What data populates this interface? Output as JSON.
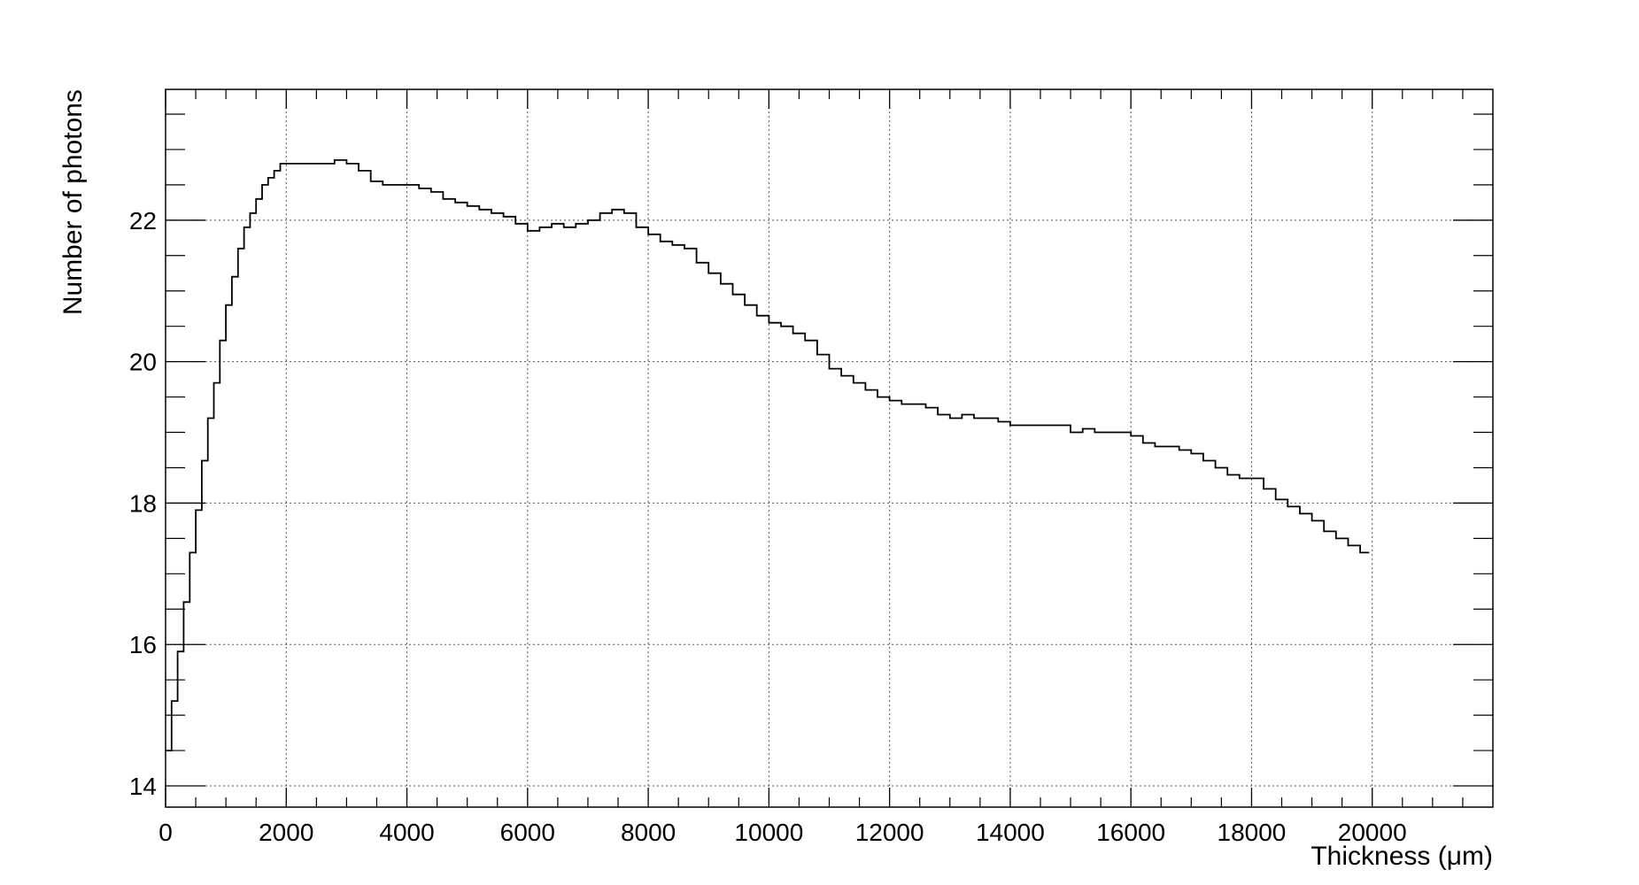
{
  "chart_data": {
    "type": "line",
    "title": "",
    "xlabel": "Thickness (μm)",
    "ylabel": "Number of photons",
    "xlim": [
      0,
      22000
    ],
    "ylim": [
      13.7,
      23.85
    ],
    "grid": true,
    "x_ticks": [
      0,
      2000,
      4000,
      6000,
      8000,
      10000,
      12000,
      14000,
      16000,
      18000,
      20000
    ],
    "x_tick_labels": [
      "0",
      "2000",
      "4000",
      "6000",
      "8000",
      "10000",
      "12000",
      "14000",
      "16000",
      "18000",
      "20000"
    ],
    "y_ticks": [
      14,
      16,
      18,
      20,
      22
    ],
    "y_tick_labels": [
      "14",
      "16",
      "18",
      "20",
      "22"
    ],
    "series": [
      {
        "color": "#000000",
        "x": [
          0,
          100,
          200,
          300,
          400,
          500,
          600,
          700,
          800,
          900,
          1000,
          1100,
          1200,
          1300,
          1400,
          1500,
          1600,
          1700,
          1800,
          1900,
          2000,
          2200,
          2400,
          2600,
          2800,
          3000,
          3200,
          3400,
          3600,
          3800,
          4000,
          4200,
          4400,
          4600,
          4800,
          5000,
          5200,
          5400,
          5600,
          5800,
          6000,
          6200,
          6400,
          6600,
          6800,
          7000,
          7200,
          7400,
          7600,
          7800,
          8000,
          8200,
          8400,
          8600,
          8800,
          9000,
          9200,
          9400,
          9600,
          9800,
          10000,
          10200,
          10400,
          10600,
          10800,
          11000,
          11200,
          11400,
          11600,
          11800,
          12000,
          12200,
          12400,
          12600,
          12800,
          13000,
          13200,
          13400,
          13600,
          13800,
          14000,
          14200,
          14400,
          14600,
          14800,
          15000,
          15200,
          15400,
          15600,
          15800,
          16000,
          16200,
          16400,
          16600,
          16800,
          17000,
          17200,
          17400,
          17600,
          17800,
          18000,
          18200,
          18400,
          18600,
          18800,
          19000,
          19200,
          19400,
          19600,
          19800,
          19950
        ],
        "values": [
          14.5,
          15.2,
          15.9,
          16.6,
          17.3,
          17.9,
          18.6,
          19.2,
          19.7,
          20.3,
          20.8,
          21.2,
          21.6,
          21.9,
          22.1,
          22.3,
          22.5,
          22.6,
          22.7,
          22.8,
          22.8,
          22.8,
          22.8,
          22.8,
          22.85,
          22.8,
          22.7,
          22.55,
          22.5,
          22.5,
          22.5,
          22.45,
          22.4,
          22.3,
          22.25,
          22.2,
          22.15,
          22.1,
          22.05,
          21.95,
          21.85,
          21.9,
          21.95,
          21.9,
          21.95,
          22.0,
          22.1,
          22.15,
          22.1,
          21.9,
          21.8,
          21.7,
          21.65,
          21.6,
          21.4,
          21.25,
          21.1,
          20.95,
          20.8,
          20.65,
          20.55,
          20.5,
          20.4,
          20.3,
          20.1,
          19.9,
          19.8,
          19.7,
          19.6,
          19.5,
          19.45,
          19.4,
          19.4,
          19.35,
          19.25,
          19.2,
          19.25,
          19.2,
          19.2,
          19.15,
          19.1,
          19.1,
          19.1,
          19.1,
          19.1,
          19.0,
          19.05,
          19.0,
          19.0,
          19.0,
          18.95,
          18.85,
          18.8,
          18.8,
          18.75,
          18.7,
          18.6,
          18.5,
          18.4,
          18.35,
          18.35,
          18.2,
          18.05,
          17.95,
          17.85,
          17.75,
          17.6,
          17.5,
          17.4,
          17.3,
          17.3
        ]
      }
    ]
  }
}
